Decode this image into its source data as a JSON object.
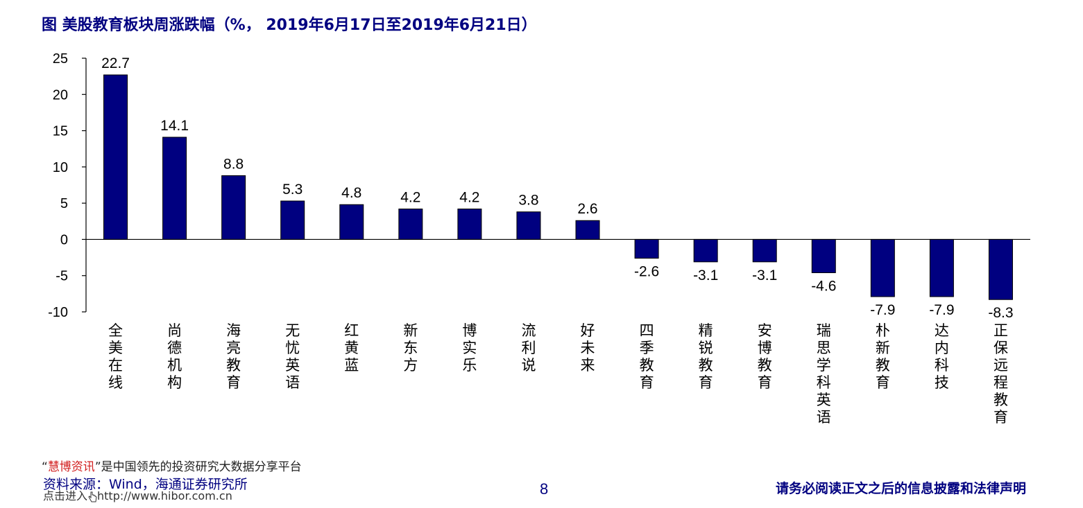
{
  "chart_data": {
    "type": "bar",
    "title": "图  美股教育板块周涨跌幅（%，  2019年6月17日至2019年6月21日）",
    "xlabel": "",
    "ylabel": "",
    "ylim": [
      -10,
      25
    ],
    "yticks": [
      25,
      20,
      15,
      10,
      5,
      0,
      -5,
      -10
    ],
    "grid": false,
    "legend": "none",
    "bar_color": "#000080",
    "categories": [
      "全美在线",
      "尚德机构",
      "海亮教育",
      "无忧英语",
      "红黄蓝",
      "新东方",
      "博实乐",
      "流利说",
      "好未来",
      "四季教育",
      "精锐教育",
      "安博教育",
      "瑞思学科英语",
      "朴新教育",
      "达内科技",
      "正保远程教育"
    ],
    "values": [
      22.7,
      14.1,
      8.8,
      5.3,
      4.8,
      4.2,
      4.2,
      3.8,
      2.6,
      -2.6,
      -3.1,
      -3.1,
      -4.6,
      -7.9,
      -7.9,
      -8.3
    ],
    "data_labels": [
      "22.7",
      "14.1",
      "8.8",
      "5.3",
      "4.8",
      "4.2",
      "4.2",
      "3.8",
      "2.6",
      "-2.6",
      "-3.1",
      "-3.1",
      "-4.6",
      "-7.9",
      "-7.9",
      "-8.3"
    ]
  },
  "footer": {
    "watermark_quote_open": "“",
    "watermark_brand": "慧博资讯",
    "watermark_rest": "”是中国领先的投资研究大数据分享平台",
    "source": "资料来源：Wind，海通证券研究所",
    "url_text": "点击进入",
    "url": "http://www.hibor.com.cn",
    "page_number": "8",
    "disclaimer": "请务必阅读正文之后的信息披露和法律声明"
  }
}
